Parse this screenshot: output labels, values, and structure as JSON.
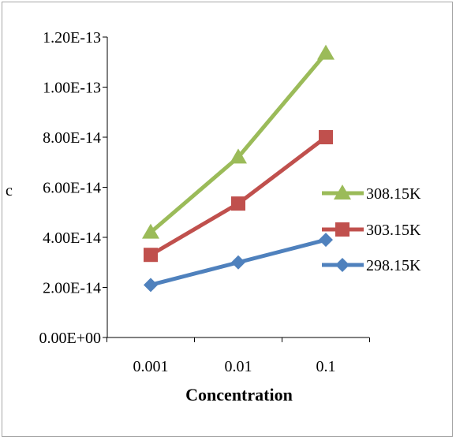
{
  "chart_data": {
    "type": "line",
    "title": "",
    "xlabel": "Concentration",
    "ylabel": "c",
    "categories": [
      "0.001",
      "0.01",
      "0.1"
    ],
    "y_ticks": [
      "0.00E+00",
      "2.00E-14",
      "4.00E-14",
      "6.00E-14",
      "8.00E-14",
      "1.00E-13",
      "1.20E-13"
    ],
    "ylim": [
      0,
      1.2e-13
    ],
    "grid": false,
    "legend_position": "right",
    "series": [
      {
        "name": "308.15K",
        "values": [
          4.2e-14,
          7.2e-14,
          1.135e-13
        ],
        "color": "#9bbb59",
        "marker": "triangle"
      },
      {
        "name": "303.15K",
        "values": [
          3.3e-14,
          5.35e-14,
          8e-14
        ],
        "color": "#c0504d",
        "marker": "square"
      },
      {
        "name": "298.15K",
        "values": [
          2.1e-14,
          3e-14,
          3.9e-14
        ],
        "color": "#4f81bd",
        "marker": "diamond"
      }
    ]
  }
}
